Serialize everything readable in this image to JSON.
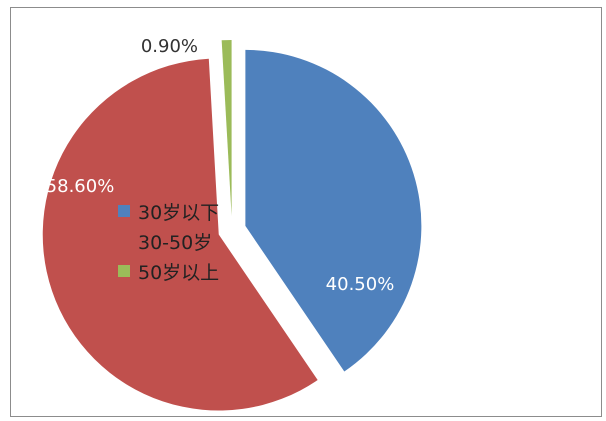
{
  "chart_data": {
    "type": "pie",
    "title": "",
    "categories": [
      "30岁以下",
      "30-50岁",
      "50岁以上"
    ],
    "values": [
      40.5,
      58.6,
      0.9
    ],
    "labels": [
      "40.50%",
      "58.60%",
      "0.90%"
    ],
    "colors": [
      "#4f81bd",
      "#c0504d",
      "#9bbb59"
    ],
    "legend": "left"
  }
}
